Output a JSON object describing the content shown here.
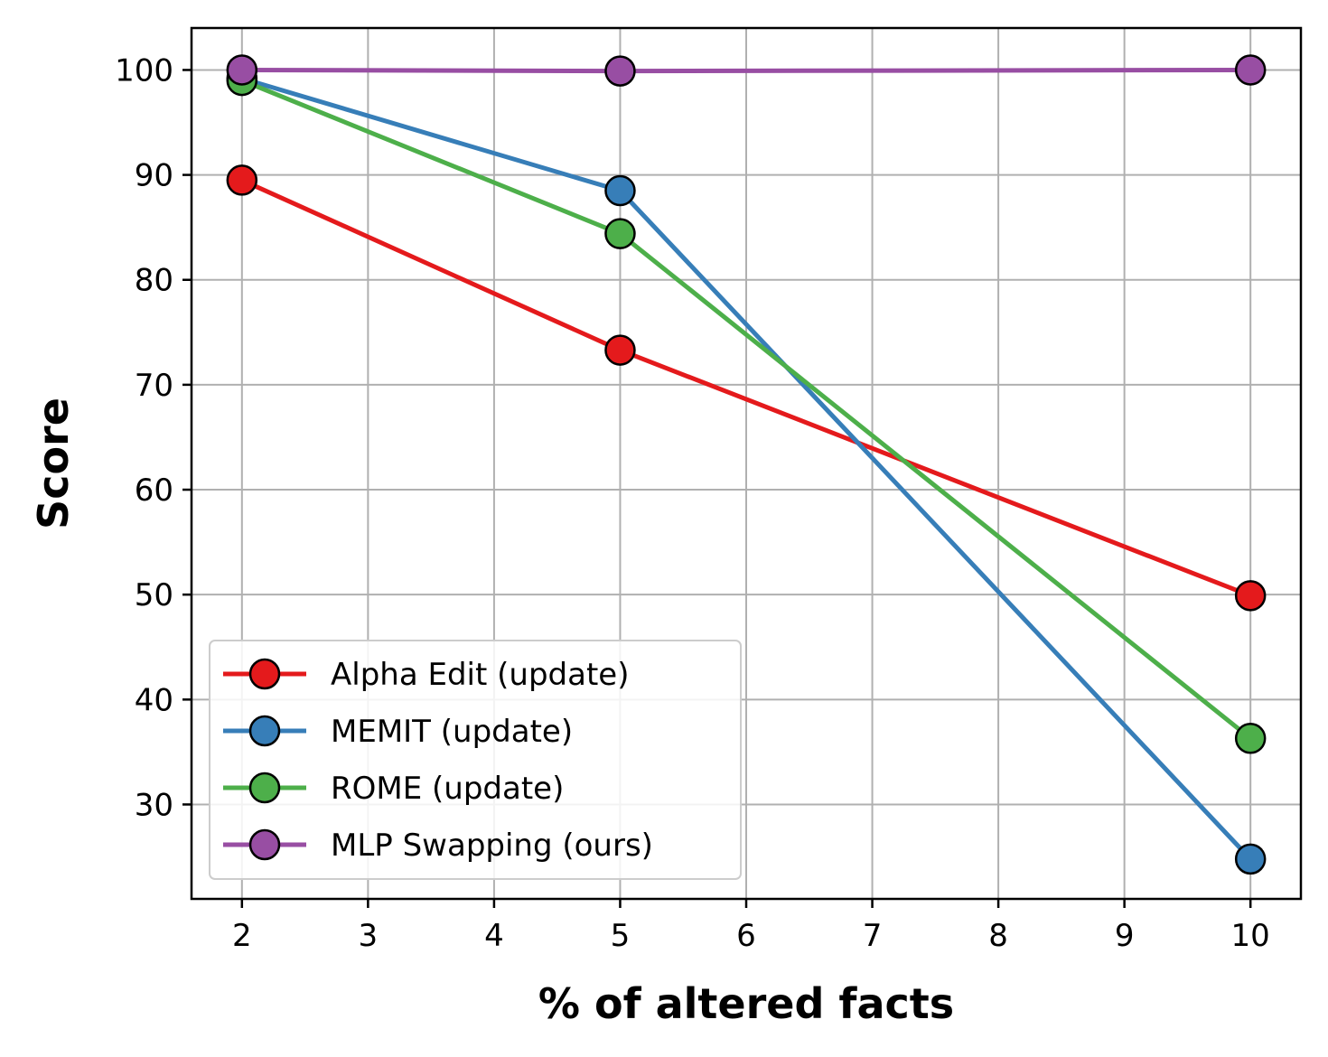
{
  "chart_data": {
    "type": "line",
    "title": "",
    "xlabel": "% of altered facts",
    "ylabel": "Score",
    "x": [
      2,
      5,
      10
    ],
    "xlim": [
      1.6,
      10.4
    ],
    "ylim": [
      21,
      104
    ],
    "xticks": [
      2,
      3,
      4,
      5,
      6,
      7,
      8,
      9,
      10
    ],
    "yticks": [
      30,
      40,
      50,
      60,
      70,
      80,
      90,
      100
    ],
    "grid": true,
    "legend_position": "lower-left",
    "series": [
      {
        "name": "Alpha Edit (update)",
        "color": "#e41a1c",
        "values": [
          89.5,
          73.3,
          49.9
        ]
      },
      {
        "name": "MEMIT (update)",
        "color": "#377eb8",
        "values": [
          99.2,
          88.5,
          24.8
        ]
      },
      {
        "name": "ROME (update)",
        "color": "#4daf4a",
        "values": [
          99.0,
          84.4,
          36.3
        ]
      },
      {
        "name": "MLP Swapping (ours)",
        "color": "#984ea3",
        "values": [
          100.0,
          99.9,
          100.0
        ]
      }
    ]
  }
}
